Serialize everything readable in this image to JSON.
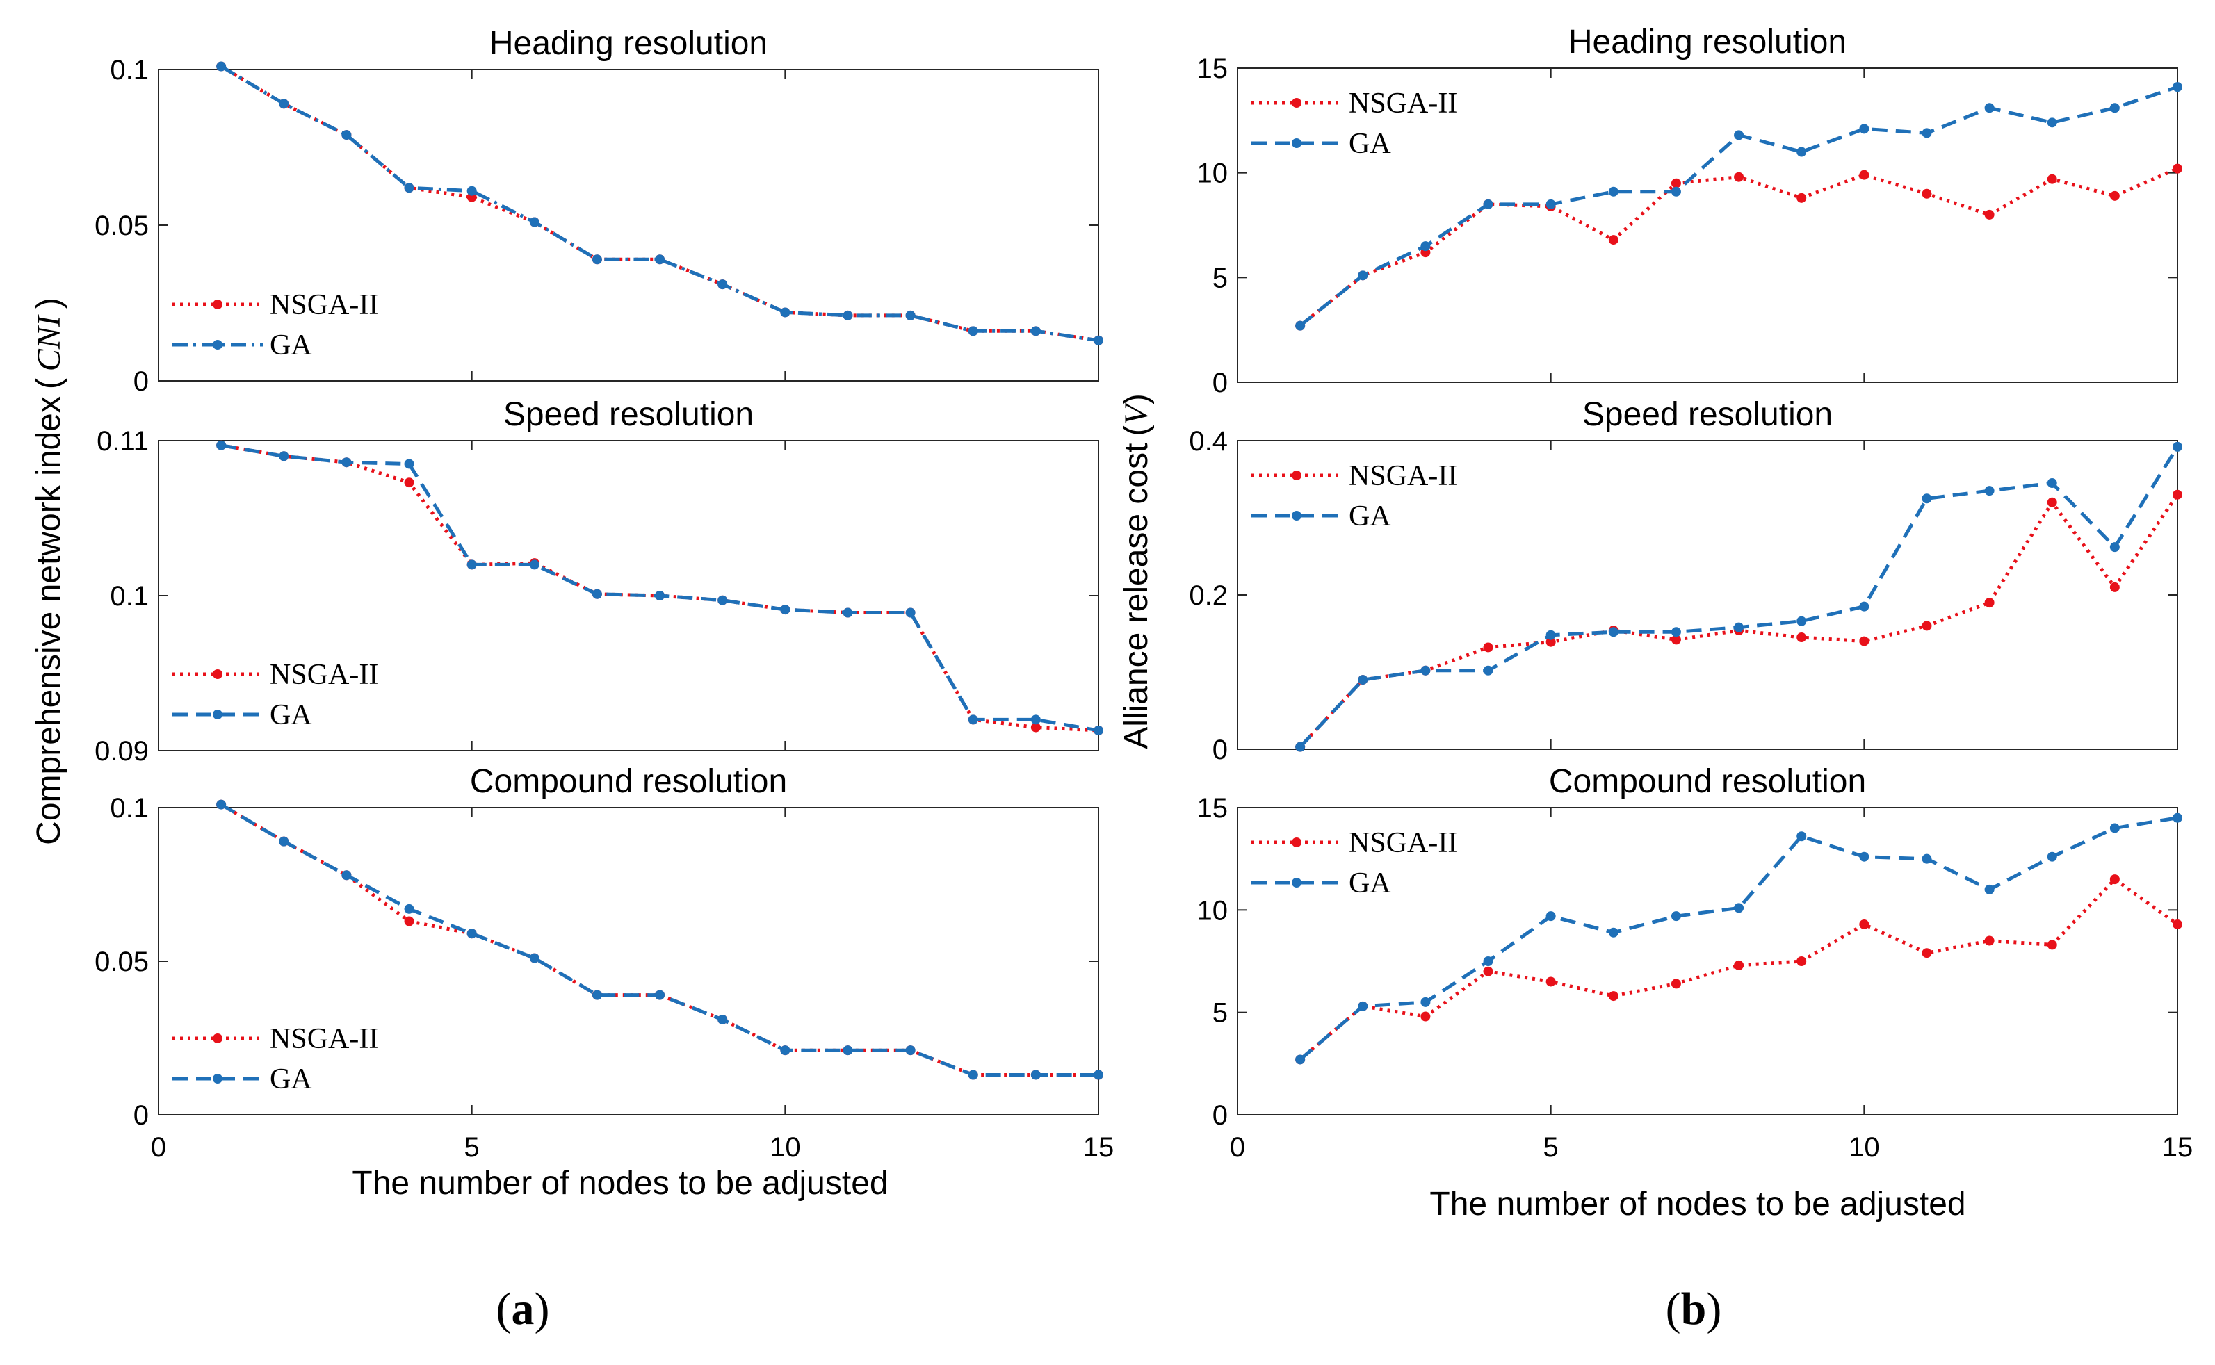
{
  "chart_data": [
    {
      "id": "a1",
      "panel": "a",
      "type": "line",
      "title": "Heading resolution",
      "xlim": [
        0,
        15
      ],
      "xticks": [
        0,
        5,
        10,
        15
      ],
      "show_xticklabels": false,
      "ylim": [
        0,
        0.1
      ],
      "yticks": [
        0,
        0.05,
        0.1
      ],
      "ytick_labels": [
        "0",
        "0.05",
        "0.1"
      ],
      "legend_position": "lower-left",
      "x": [
        1,
        2,
        3,
        4,
        5,
        6,
        7,
        8,
        9,
        10,
        11,
        12,
        13,
        14,
        15
      ],
      "series": [
        {
          "name": "NSGA-II",
          "color": "#e8111a",
          "style": "dotted",
          "values": [
            0.101,
            0.089,
            0.079,
            0.062,
            0.059,
            0.051,
            0.039,
            0.039,
            0.031,
            0.022,
            0.021,
            0.021,
            0.016,
            0.016,
            0.013
          ]
        },
        {
          "name": "GA",
          "color": "#1f70b8",
          "style": "dashdot",
          "values": [
            0.101,
            0.089,
            0.079,
            0.062,
            0.061,
            0.051,
            0.039,
            0.039,
            0.031,
            0.022,
            0.021,
            0.021,
            0.016,
            0.016,
            0.013
          ]
        }
      ]
    },
    {
      "id": "a2",
      "panel": "a",
      "type": "line",
      "title": "Speed resolution",
      "xlim": [
        0,
        15
      ],
      "xticks": [
        0,
        5,
        10,
        15
      ],
      "show_xticklabels": false,
      "ylim": [
        0.09,
        0.11
      ],
      "yticks": [
        0.09,
        0.1,
        0.11
      ],
      "ytick_labels": [
        "0.09",
        "0.1",
        "0.11"
      ],
      "legend_position": "lower-left",
      "x": [
        1,
        2,
        3,
        4,
        5,
        6,
        7,
        8,
        9,
        10,
        11,
        12,
        13,
        14,
        15
      ],
      "series": [
        {
          "name": "NSGA-II",
          "color": "#e8111a",
          "style": "dotted",
          "values": [
            0.1097,
            0.109,
            0.1086,
            0.1073,
            0.102,
            0.1021,
            0.1001,
            0.1,
            0.0997,
            0.0991,
            0.0989,
            0.0989,
            0.092,
            0.0915,
            0.0913
          ]
        },
        {
          "name": "GA",
          "color": "#1f70b8",
          "style": "dashed",
          "values": [
            0.1097,
            0.109,
            0.1086,
            0.1085,
            0.102,
            0.102,
            0.1001,
            0.1,
            0.0997,
            0.0991,
            0.0989,
            0.0989,
            0.092,
            0.092,
            0.0913
          ]
        }
      ]
    },
    {
      "id": "a3",
      "panel": "a",
      "type": "line",
      "title": "Compound resolution",
      "xlim": [
        0,
        15
      ],
      "xticks": [
        0,
        5,
        10,
        15
      ],
      "show_xticklabels": true,
      "ylim": [
        0,
        0.1
      ],
      "yticks": [
        0,
        0.05,
        0.1
      ],
      "ytick_labels": [
        "0",
        "0.05",
        "0.1"
      ],
      "legend_position": "lower-left",
      "x": [
        1,
        2,
        3,
        4,
        5,
        6,
        7,
        8,
        9,
        10,
        11,
        12,
        13,
        14,
        15
      ],
      "series": [
        {
          "name": "NSGA-II",
          "color": "#e8111a",
          "style": "dotted",
          "values": [
            0.101,
            0.089,
            0.078,
            0.063,
            0.059,
            0.051,
            0.039,
            0.039,
            0.031,
            0.021,
            0.021,
            0.021,
            0.013,
            0.013,
            0.013
          ]
        },
        {
          "name": "GA",
          "color": "#1f70b8",
          "style": "dashed",
          "values": [
            0.101,
            0.089,
            0.078,
            0.067,
            0.059,
            0.051,
            0.039,
            0.039,
            0.031,
            0.021,
            0.021,
            0.021,
            0.013,
            0.013,
            0.013
          ]
        }
      ]
    },
    {
      "id": "b1",
      "panel": "b",
      "type": "line",
      "title": "Heading resolution",
      "xlim": [
        0,
        15
      ],
      "xticks": [
        0,
        5,
        10,
        15
      ],
      "show_xticklabels": false,
      "ylim": [
        0,
        15
      ],
      "yticks": [
        0,
        5,
        10,
        15
      ],
      "ytick_labels": [
        "0",
        "5",
        "10",
        "15"
      ],
      "legend_position": "top-left",
      "x": [
        1,
        2,
        3,
        4,
        5,
        6,
        7,
        8,
        9,
        10,
        11,
        12,
        13,
        14,
        15
      ],
      "series": [
        {
          "name": "NSGA-II",
          "color": "#e8111a",
          "style": "dotted",
          "values": [
            2.7,
            5.1,
            6.2,
            8.5,
            8.4,
            6.8,
            9.5,
            9.8,
            8.8,
            9.9,
            9.0,
            8.0,
            9.7,
            8.9,
            10.2
          ]
        },
        {
          "name": "GA",
          "color": "#1f70b8",
          "style": "dashed",
          "values": [
            2.7,
            5.1,
            6.5,
            8.5,
            8.5,
            9.1,
            9.1,
            11.8,
            11.0,
            12.1,
            11.9,
            13.1,
            12.4,
            13.1,
            14.1
          ]
        }
      ]
    },
    {
      "id": "b2",
      "panel": "b",
      "type": "line",
      "title": "Speed resolution",
      "xlim": [
        0,
        15
      ],
      "xticks": [
        0,
        5,
        10,
        15
      ],
      "show_xticklabels": false,
      "ylim": [
        0,
        0.4
      ],
      "yticks": [
        0,
        0.2,
        0.4
      ],
      "ytick_labels": [
        "0",
        "0.2",
        "0.4"
      ],
      "legend_position": "top-left",
      "x": [
        1,
        2,
        3,
        4,
        5,
        6,
        7,
        8,
        9,
        10,
        11,
        12,
        13,
        14,
        15
      ],
      "series": [
        {
          "name": "NSGA-II",
          "color": "#e8111a",
          "style": "dotted",
          "values": [
            0.003,
            0.09,
            0.102,
            0.132,
            0.139,
            0.154,
            0.142,
            0.154,
            0.145,
            0.14,
            0.16,
            0.19,
            0.32,
            0.21,
            0.33
          ]
        },
        {
          "name": "GA",
          "color": "#1f70b8",
          "style": "dashed",
          "values": [
            0.003,
            0.09,
            0.102,
            0.102,
            0.148,
            0.152,
            0.152,
            0.158,
            0.166,
            0.185,
            0.325,
            0.335,
            0.345,
            0.262,
            0.392
          ]
        }
      ]
    },
    {
      "id": "b3",
      "panel": "b",
      "type": "line",
      "title": "Compound resolution",
      "xlim": [
        0,
        15
      ],
      "xticks": [
        0,
        5,
        10,
        15
      ],
      "show_xticklabels": true,
      "ylim": [
        0,
        15
      ],
      "yticks": [
        0,
        5,
        10,
        15
      ],
      "ytick_labels": [
        "0",
        "5",
        "10",
        "15"
      ],
      "legend_position": "top-left",
      "x": [
        1,
        2,
        3,
        4,
        5,
        6,
        7,
        8,
        9,
        10,
        11,
        12,
        13,
        14,
        15
      ],
      "series": [
        {
          "name": "NSGA-II",
          "color": "#e8111a",
          "style": "dotted",
          "values": [
            2.7,
            5.3,
            4.8,
            7.0,
            6.5,
            5.8,
            6.4,
            7.3,
            7.5,
            9.3,
            7.9,
            8.5,
            8.3,
            11.5,
            9.3
          ]
        },
        {
          "name": "GA",
          "color": "#1f70b8",
          "style": "dashed",
          "values": [
            2.7,
            5.3,
            5.5,
            7.5,
            9.7,
            8.9,
            9.7,
            10.1,
            13.6,
            12.6,
            12.5,
            11.0,
            12.6,
            14.0,
            14.5
          ]
        }
      ]
    }
  ],
  "labels": {
    "xlabel": "The number of nodes to be adjusted",
    "ylabel_a": "Comprehensive network index",
    "ylabel_a_var": "CNI",
    "ylabel_b": "Alliance release cost",
    "ylabel_b_var": "V",
    "paren_open": "(",
    "paren_close": ")",
    "panel_a_open": "(",
    "panel_a_letter": "a",
    "panel_a_close": ")",
    "panel_b_open": "(",
    "panel_b_letter": "b",
    "panel_b_close": ")"
  }
}
